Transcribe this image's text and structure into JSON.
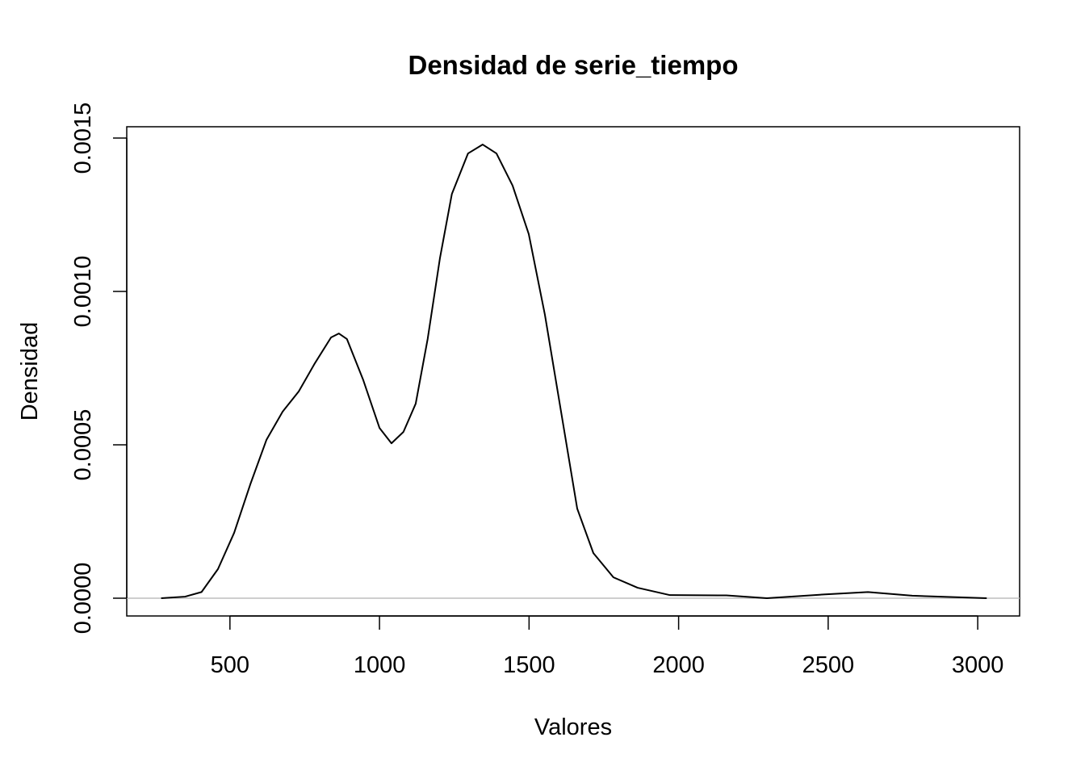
{
  "chart_data": {
    "type": "line",
    "title": "Densidad de serie_tiempo",
    "x_label": "Valores",
    "y_label": "Densidad",
    "series": [
      {
        "color": "#000000",
        "x": [
          270,
          350,
          405,
          460,
          514,
          568,
          622,
          676,
          730,
          784,
          838,
          864,
          891,
          945,
          1000,
          1040,
          1080,
          1121,
          1161,
          1202,
          1242,
          1296,
          1345,
          1391,
          1445,
          1499,
          1553,
          1607,
          1661,
          1715,
          1782,
          1863,
          1971,
          2160,
          2295,
          2484,
          2633,
          2781,
          3030
        ],
        "values": [
          0,
          5e-06,
          2e-05,
          9.5e-05,
          0.000213,
          0.000371,
          0.000516,
          0.000608,
          0.000674,
          0.000766,
          0.00085,
          0.000863,
          0.000845,
          0.000713,
          0.000555,
          0.000505,
          0.000542,
          0.000634,
          0.000845,
          0.001108,
          0.001318,
          0.00145,
          0.001479,
          0.00145,
          0.001345,
          0.001187,
          0.000924,
          0.000608,
          0.000292,
          0.000147,
          6.8e-05,
          3.4e-05,
          1e-05,
          9e-06,
          0,
          1.2e-05,
          2e-05,
          8e-06,
          0
        ]
      }
    ],
    "xlim": [
      155,
      3140
    ],
    "xticks": [
      500,
      1000,
      1500,
      2000,
      2500,
      3000
    ],
    "ylim": [
      -5.8e-05,
      0.001537
    ],
    "yticks": [
      {
        "value": 0,
        "label": "0.0000"
      },
      {
        "value": 0.0005,
        "label": "0.0005"
      },
      {
        "value": 0.001,
        "label": "0.0010"
      },
      {
        "value": 0.0015,
        "label": "0.0015"
      }
    ]
  }
}
